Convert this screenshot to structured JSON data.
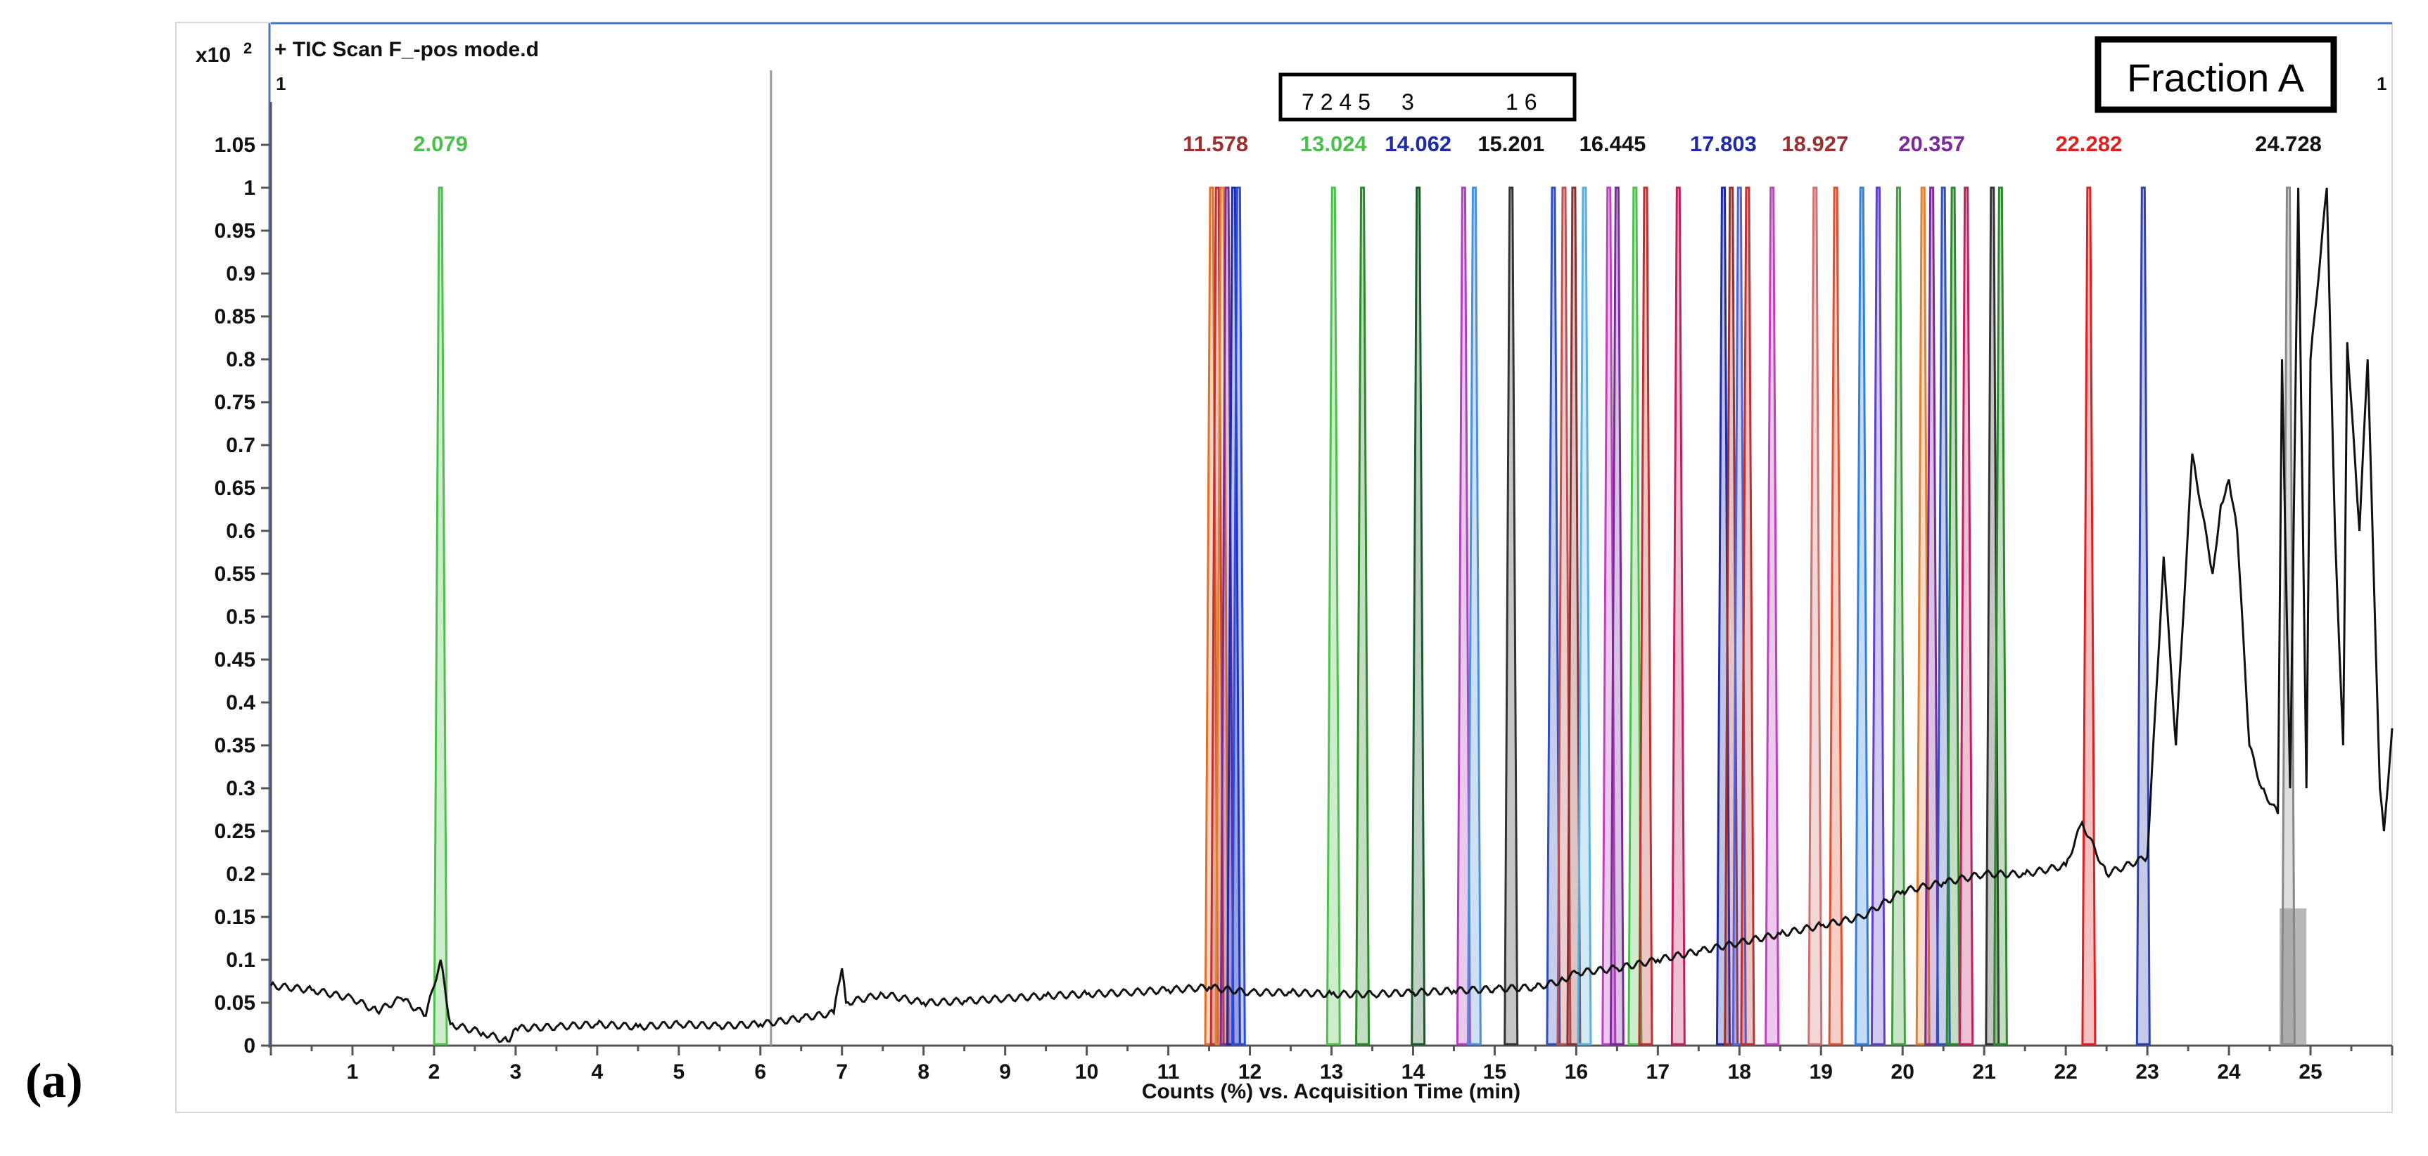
{
  "chart_data": {
    "type": "line",
    "title": "+ TIC Scan F_-pos mode.d",
    "panel_label": "(a)",
    "fraction_label": "Fraction A",
    "y_multiplier": "x10",
    "y_multiplier_exp": "2",
    "corner_marker_left": "1",
    "corner_marker_right": "1",
    "xlabel": "Counts (%) vs. Acquisition Time (min)",
    "ylabel": "",
    "xlim": [
      0,
      26
    ],
    "ylim": [
      0,
      1.1
    ],
    "x_ticks": [
      "1",
      "2",
      "3",
      "4",
      "5",
      "6",
      "7",
      "8",
      "9",
      "10",
      "11",
      "12",
      "13",
      "14",
      "15",
      "16",
      "17",
      "18",
      "19",
      "20",
      "21",
      "22",
      "23",
      "24",
      "25"
    ],
    "y_ticks": [
      "0",
      "0.05",
      "0.1",
      "0.15",
      "0.2",
      "0.25",
      "0.3",
      "0.35",
      "0.4",
      "0.45",
      "0.5",
      "0.55",
      "0.6",
      "0.65",
      "0.7",
      "0.75",
      "0.8",
      "0.85",
      "0.9",
      "0.95",
      "1",
      "1.05"
    ],
    "vertical_marker_x": 6.13,
    "peak_numbers_box": [
      "7 2 4 5",
      "3",
      "1 6"
    ],
    "peak_labels": [
      {
        "text": "2.079",
        "x": 2.079,
        "color": "#4cc04c"
      },
      {
        "text": "11.578",
        "x": 11.578,
        "color": "#9a3030"
      },
      {
        "text": "13.024",
        "x": 13.024,
        "color": "#4cc04c"
      },
      {
        "text": "14.062",
        "x": 14.062,
        "color": "#1e2aa8"
      },
      {
        "text": "15.201",
        "x": 15.201,
        "color": "#111111"
      },
      {
        "text": "16.445",
        "x": 16.445,
        "color": "#111111"
      },
      {
        "text": "17.803",
        "x": 17.803,
        "color": "#1e2aa8"
      },
      {
        "text": "18.927",
        "x": 18.927,
        "color": "#9a3030"
      },
      {
        "text": "20.357",
        "x": 20.357,
        "color": "#7a2a9a"
      },
      {
        "text": "22.282",
        "x": 22.282,
        "color": "#e02020"
      },
      {
        "text": "24.728",
        "x": 24.728,
        "color": "#111111"
      }
    ],
    "tic_series": {
      "name": "TIC",
      "color": "#111111",
      "points": [
        [
          0,
          0.07
        ],
        [
          0.5,
          0.065
        ],
        [
          1,
          0.055
        ],
        [
          1.3,
          0.04
        ],
        [
          1.6,
          0.055
        ],
        [
          1.9,
          0.035
        ],
        [
          2.08,
          0.1
        ],
        [
          2.2,
          0.025
        ],
        [
          2.6,
          0.015
        ],
        [
          2.9,
          0.005
        ],
        [
          3.0,
          0.02
        ],
        [
          3.5,
          0.022
        ],
        [
          4,
          0.025
        ],
        [
          4.5,
          0.022
        ],
        [
          5,
          0.025
        ],
        [
          5.5,
          0.023
        ],
        [
          6,
          0.025
        ],
        [
          6.5,
          0.032
        ],
        [
          6.9,
          0.038
        ],
        [
          7.0,
          0.09
        ],
        [
          7.05,
          0.05
        ],
        [
          7.5,
          0.06
        ],
        [
          8,
          0.05
        ],
        [
          8.5,
          0.052
        ],
        [
          9,
          0.055
        ],
        [
          9.5,
          0.058
        ],
        [
          10,
          0.06
        ],
        [
          10.5,
          0.062
        ],
        [
          11,
          0.065
        ],
        [
          11.5,
          0.068
        ],
        [
          12,
          0.062
        ],
        [
          12.5,
          0.062
        ],
        [
          13,
          0.06
        ],
        [
          13.5,
          0.06
        ],
        [
          14,
          0.062
        ],
        [
          14.5,
          0.064
        ],
        [
          15,
          0.066
        ],
        [
          15.5,
          0.068
        ],
        [
          15.8,
          0.075
        ],
        [
          16,
          0.085
        ],
        [
          16.5,
          0.09
        ],
        [
          17,
          0.1
        ],
        [
          17.5,
          0.11
        ],
        [
          18,
          0.12
        ],
        [
          18.5,
          0.13
        ],
        [
          19,
          0.14
        ],
        [
          19.5,
          0.15
        ],
        [
          20,
          0.18
        ],
        [
          20.5,
          0.19
        ],
        [
          21,
          0.2
        ],
        [
          21.5,
          0.2
        ],
        [
          22,
          0.21
        ],
        [
          22.2,
          0.26
        ],
        [
          22.5,
          0.2
        ],
        [
          23,
          0.22
        ],
        [
          23.2,
          0.57
        ],
        [
          23.35,
          0.35
        ],
        [
          23.55,
          0.69
        ],
        [
          23.8,
          0.55
        ],
        [
          23.9,
          0.63
        ],
        [
          24.0,
          0.66
        ],
        [
          24.1,
          0.6
        ],
        [
          24.25,
          0.35
        ],
        [
          24.4,
          0.3
        ],
        [
          24.6,
          0.27
        ],
        [
          24.65,
          0.8
        ],
        [
          24.75,
          0.3
        ],
        [
          24.85,
          1.0
        ],
        [
          24.95,
          0.3
        ],
        [
          25.0,
          0.8
        ],
        [
          25.2,
          1.0
        ],
        [
          25.3,
          0.6
        ],
        [
          25.4,
          0.35
        ],
        [
          25.45,
          0.82
        ],
        [
          25.6,
          0.6
        ],
        [
          25.7,
          0.8
        ],
        [
          25.85,
          0.3
        ],
        [
          25.9,
          0.25
        ],
        [
          26.0,
          0.37
        ]
      ]
    },
    "eic_peaks": [
      {
        "x": 2.079,
        "h": 1.0,
        "color": "#4cc04c"
      },
      {
        "x": 11.53,
        "h": 1.0,
        "color": "#e0702a"
      },
      {
        "x": 11.6,
        "h": 1.0,
        "color": "#c03030"
      },
      {
        "x": 11.66,
        "h": 1.0,
        "color": "#e08030"
      },
      {
        "x": 11.72,
        "h": 1.0,
        "color": "#7a2a9a"
      },
      {
        "x": 11.8,
        "h": 1.0,
        "color": "#1e2aa8"
      },
      {
        "x": 11.86,
        "h": 1.0,
        "color": "#2a4ae0"
      },
      {
        "x": 13.024,
        "h": 1.0,
        "color": "#4cc04c"
      },
      {
        "x": 13.38,
        "h": 1.0,
        "color": "#2a8a2a"
      },
      {
        "x": 14.062,
        "h": 1.0,
        "color": "#1a5a2a"
      },
      {
        "x": 14.62,
        "h": 1.0,
        "color": "#b040c0"
      },
      {
        "x": 14.75,
        "h": 1.0,
        "color": "#4a90e0"
      },
      {
        "x": 15.201,
        "h": 1.0,
        "color": "#333333"
      },
      {
        "x": 15.72,
        "h": 1.0,
        "color": "#3050c0"
      },
      {
        "x": 15.85,
        "h": 1.0,
        "color": "#c05050"
      },
      {
        "x": 15.97,
        "h": 1.0,
        "color": "#8a3030"
      },
      {
        "x": 16.1,
        "h": 1.0,
        "color": "#5ab0e0"
      },
      {
        "x": 16.4,
        "h": 1.0,
        "color": "#c040c0"
      },
      {
        "x": 16.5,
        "h": 1.0,
        "color": "#7a2a9a"
      },
      {
        "x": 16.72,
        "h": 1.0,
        "color": "#4cc04c"
      },
      {
        "x": 16.85,
        "h": 1.0,
        "color": "#c03030"
      },
      {
        "x": 17.25,
        "h": 1.0,
        "color": "#c02060"
      },
      {
        "x": 17.803,
        "h": 1.0,
        "color": "#1e2aa8"
      },
      {
        "x": 17.9,
        "h": 1.0,
        "color": "#9a3030"
      },
      {
        "x": 18.0,
        "h": 1.0,
        "color": "#5060e0"
      },
      {
        "x": 18.1,
        "h": 1.0,
        "color": "#c03030"
      },
      {
        "x": 18.4,
        "h": 1.0,
        "color": "#c040c0"
      },
      {
        "x": 18.927,
        "h": 1.0,
        "color": "#d07070"
      },
      {
        "x": 19.18,
        "h": 1.0,
        "color": "#e05030"
      },
      {
        "x": 19.5,
        "h": 1.0,
        "color": "#3080e0"
      },
      {
        "x": 19.7,
        "h": 1.0,
        "color": "#6040d0"
      },
      {
        "x": 19.95,
        "h": 1.0,
        "color": "#40a040"
      },
      {
        "x": 20.25,
        "h": 1.0,
        "color": "#e08030"
      },
      {
        "x": 20.357,
        "h": 1.0,
        "color": "#7a2a9a"
      },
      {
        "x": 20.5,
        "h": 1.0,
        "color": "#3050c0"
      },
      {
        "x": 20.62,
        "h": 1.0,
        "color": "#2a8a2a"
      },
      {
        "x": 20.78,
        "h": 1.0,
        "color": "#c02060"
      },
      {
        "x": 21.1,
        "h": 1.0,
        "color": "#333333"
      },
      {
        "x": 21.2,
        "h": 1.0,
        "color": "#2a8a2a"
      },
      {
        "x": 22.282,
        "h": 1.0,
        "color": "#e02020"
      },
      {
        "x": 22.95,
        "h": 1.0,
        "color": "#3040b0"
      },
      {
        "x": 24.728,
        "h": 1.0,
        "color": "#888888"
      }
    ]
  }
}
